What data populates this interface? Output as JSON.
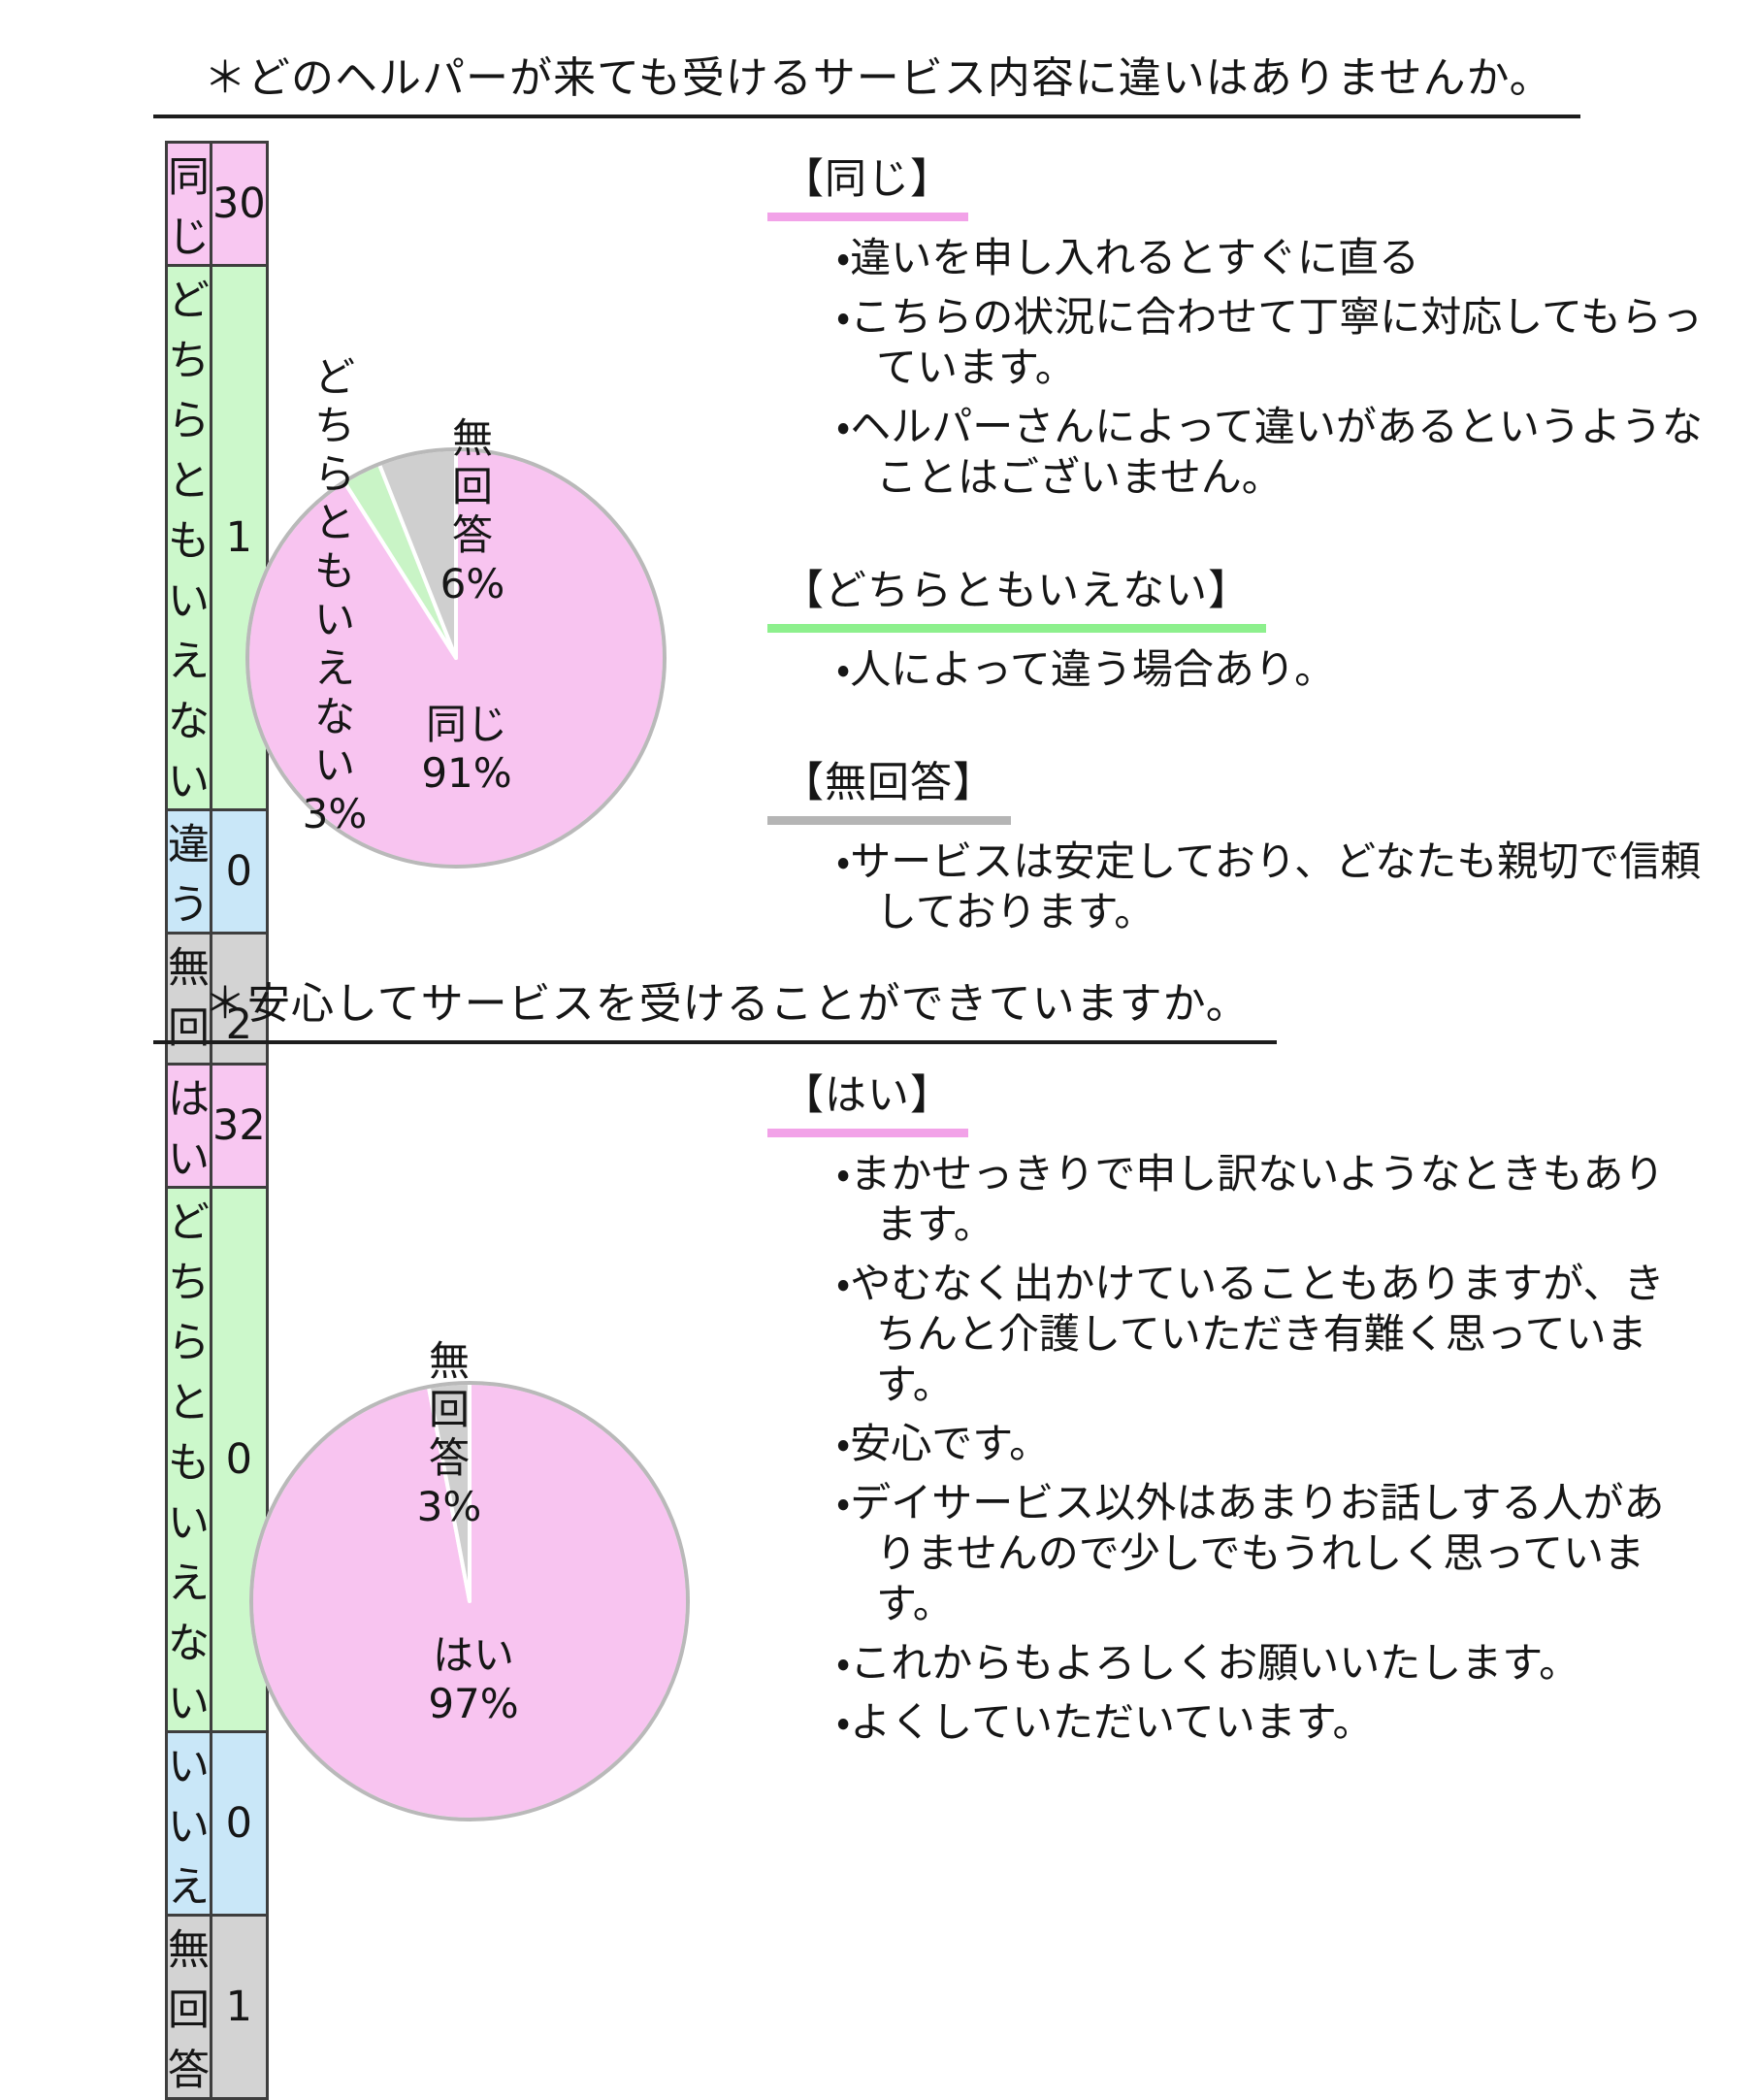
{
  "document": {
    "sections": [
      {
        "question": "＊どのヘルパーが来ても受けるサービス内容に違いはありませんか。",
        "table": {
          "rows": [
            {
              "label": "同じ",
              "value": "30"
            },
            {
              "label": "どちらともいえない",
              "value": "1"
            },
            {
              "label": "違う",
              "value": "0"
            },
            {
              "label": "無回答",
              "value": "2"
            }
          ]
        },
        "comment_groups": [
          {
            "heading": "【同じ】",
            "items": [
              "・違いを申し入れるとすぐに直る",
              "・こちらの状況に合わせて丁寧に対応してもらっています。",
              "・ヘルパーさんによって違いがあるというようなことはございません。"
            ]
          },
          {
            "heading": "【どちらともいえない】",
            "items": [
              "・人によって違う場合あり。"
            ]
          },
          {
            "heading": "【無回答】",
            "items": [
              "・サービスは安定しており、どなたも親切で信頼しております。"
            ]
          }
        ]
      },
      {
        "question": "＊安心してサービスを受けることができていますか。",
        "table": {
          "rows": [
            {
              "label": "はい",
              "value": "32"
            },
            {
              "label": "どちらともいえない",
              "value": "0"
            },
            {
              "label": "いいえ",
              "value": "0"
            },
            {
              "label": "無回答",
              "value": "1"
            }
          ]
        },
        "comment_groups": [
          {
            "heading": "【はい】",
            "items": [
              "・まかせっきりで申し訳ないようなときもあります。",
              "・やむなく出かけていることもありますが、きちんと介護していただき有難く思っています。",
              "・安心です。",
              "・デイサービス以外はあまりお話しする人がありませんので少しでもうれしく思っています。",
              "・これからもよろしくお願いいたします。",
              "・よくしていただいています。"
            ]
          }
        ]
      }
    ]
  },
  "chart_data": [
    {
      "type": "pie",
      "title": "どのヘルパーが来ても受けるサービス内容に違いはありませんか。",
      "categories": [
        "同じ",
        "どちらともいえない",
        "違う",
        "無回答"
      ],
      "values": [
        30,
        1,
        0,
        2
      ],
      "start": "top",
      "direction": "clockwise",
      "legend": "none",
      "slices": [
        {
          "label": "同じ",
          "percent": 91,
          "color": "#f8c4f0"
        },
        {
          "label": "どちらともいえない",
          "percent": 3,
          "color": "#c9f4c6"
        },
        {
          "label": "違う",
          "percent": 0,
          "color": "#c9e7f8"
        },
        {
          "label": "無回答",
          "percent": 6,
          "color": "#cfcfcf"
        }
      ],
      "annotations": [
        "無回答\n6%",
        "どちらとも\nいえない\n3%",
        "同じ\n91%"
      ]
    },
    {
      "type": "pie",
      "title": "安心してサービスを受けることができていますか。",
      "categories": [
        "はい",
        "どちらともいえない",
        "いいえ",
        "無回答"
      ],
      "values": [
        32,
        0,
        0,
        1
      ],
      "start": "top",
      "direction": "clockwise",
      "legend": "none",
      "slices": [
        {
          "label": "はい",
          "percent": 97,
          "color": "#f8c4f0"
        },
        {
          "label": "どちらともいえない",
          "percent": 0,
          "color": "#c9f4c6"
        },
        {
          "label": "いいえ",
          "percent": 0,
          "color": "#c9e7f8"
        },
        {
          "label": "無回答",
          "percent": 3,
          "color": "#cfcfcf"
        }
      ],
      "annotations": [
        "無回答\n3%",
        "はい\n97%"
      ]
    }
  ],
  "colors": {
    "row_pink": "#f8c7f1",
    "row_green": "#ccf8cb",
    "row_blue": "#c9e7f8",
    "row_gray": "#d3d3d3",
    "pie_pink": "#f8c4f0",
    "pie_green": "#c9f4c6",
    "pie_gray": "#cfcfcf",
    "pie_rim": "#b9b9b9",
    "underline_pink": "#f2a2e8",
    "underline_green": "#8df08d",
    "underline_gray": "#b5b5b5",
    "table_border": "#3e3e3e",
    "text": "#161616"
  }
}
